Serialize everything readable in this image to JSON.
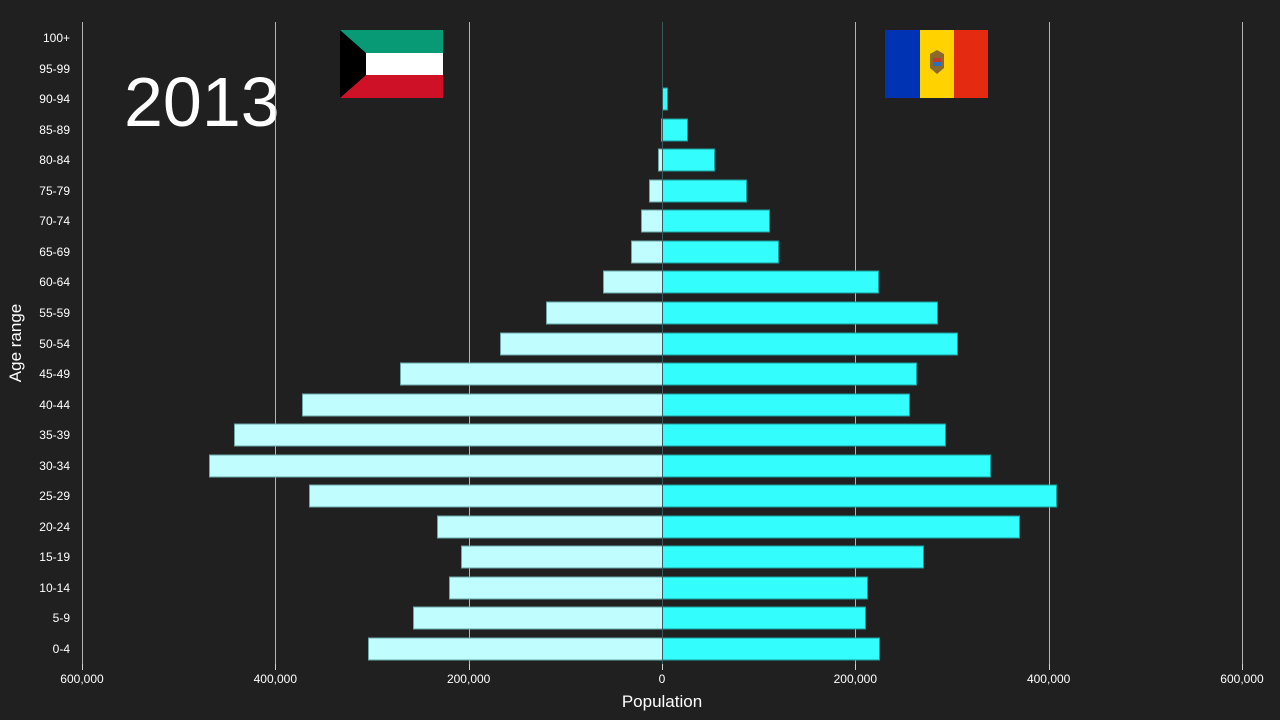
{
  "chart_data": {
    "type": "bar",
    "subtype": "population-pyramid",
    "title": "2013",
    "xlabel": "Population",
    "ylabel": "Age range",
    "xlim": [
      -600000,
      600000
    ],
    "x_ticks": [
      -600000,
      -400000,
      -200000,
      0,
      200000,
      400000,
      600000
    ],
    "x_tick_labels": [
      "600,000",
      "400,000",
      "200,000",
      "0",
      "200,000",
      "400,000",
      "600,000"
    ],
    "grid": "vertical",
    "categories": [
      "100+",
      "95-99",
      "90-94",
      "85-89",
      "80-84",
      "75-79",
      "70-74",
      "65-69",
      "60-64",
      "55-59",
      "50-54",
      "45-49",
      "40-44",
      "35-39",
      "30-34",
      "25-29",
      "20-24",
      "15-19",
      "10-14",
      "5-9",
      "0-4"
    ],
    "series": [
      {
        "name": "Kuwait",
        "side": "left",
        "color": "#bffdff",
        "values": [
          100,
          200,
          500,
          1500,
          4000,
          13000,
          22000,
          32000,
          61000,
          120000,
          168000,
          271000,
          372000,
          443000,
          469000,
          365000,
          233000,
          208000,
          220000,
          258000,
          304000
        ]
      },
      {
        "name": "Moldova",
        "side": "right",
        "color": "#33fdfd",
        "values": [
          300,
          1500,
          6000,
          27000,
          55000,
          88000,
          112000,
          121000,
          224000,
          286000,
          306000,
          264000,
          257000,
          294000,
          340000,
          409000,
          370000,
          271000,
          213000,
          211000,
          225000
        ]
      }
    ]
  },
  "header": {
    "year": "2013",
    "left_flag": "kuwait-flag",
    "right_flag": "moldova-flag"
  },
  "colors": {
    "background": "#202020",
    "left_bar": "#bffdff",
    "right_bar": "#33fdfd",
    "kuwait_green": "#079a74",
    "kuwait_white": "#ffffff",
    "kuwait_red": "#ce1126",
    "kuwait_black": "#000000",
    "moldova_blue": "#0033b4",
    "moldova_yellow": "#ffd200",
    "moldova_red": "#e52a12"
  }
}
